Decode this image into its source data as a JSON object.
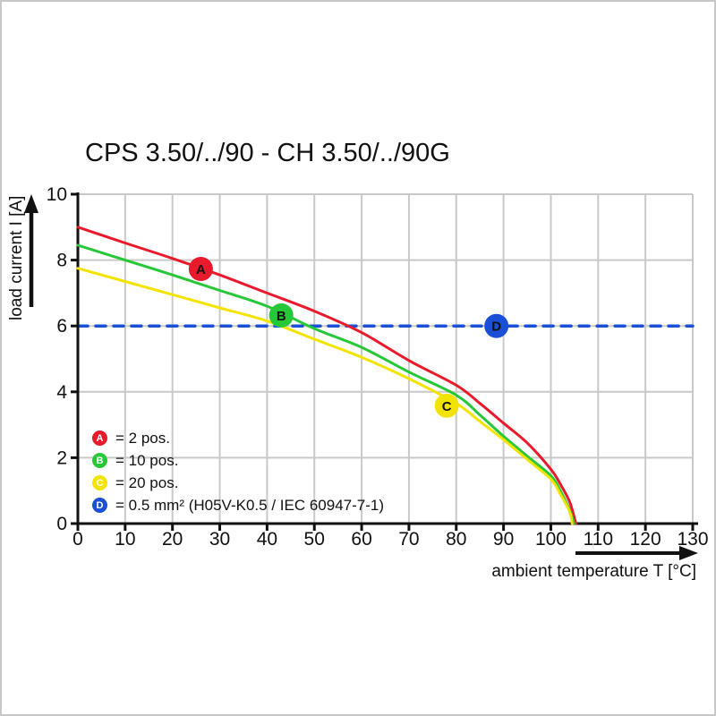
{
  "chart_data": {
    "type": "line",
    "title": "CPS 3.50/../90 - CH 3.50/../90G",
    "xlabel": "ambient temperature T [°C]",
    "ylabel": "load current I [A]",
    "xlim": [
      0,
      130
    ],
    "ylim": [
      0,
      10
    ],
    "xticks": [
      0,
      10,
      20,
      30,
      40,
      50,
      60,
      70,
      80,
      90,
      100,
      110,
      120,
      130
    ],
    "yticks": [
      0,
      2,
      4,
      6,
      8,
      10
    ],
    "grid": true,
    "legend_position": "lower-left",
    "series": [
      {
        "id": "A",
        "name": "2 pos.",
        "color": "#e81a2c",
        "style": "solid",
        "points": [
          [
            0,
            9.0
          ],
          [
            10,
            8.52
          ],
          [
            20,
            8.05
          ],
          [
            30,
            7.55
          ],
          [
            40,
            7.0
          ],
          [
            50,
            6.45
          ],
          [
            60,
            5.8
          ],
          [
            70,
            4.95
          ],
          [
            80,
            4.2
          ],
          [
            85,
            3.65
          ],
          [
            90,
            3.05
          ],
          [
            95,
            2.45
          ],
          [
            100,
            1.65
          ],
          [
            102,
            1.2
          ],
          [
            104,
            0.65
          ],
          [
            105.3,
            0
          ]
        ],
        "marker": {
          "x": 26,
          "y": 7.73,
          "label": "A"
        }
      },
      {
        "id": "B",
        "name": "10 pos.",
        "color": "#26c838",
        "style": "solid",
        "points": [
          [
            0,
            8.45
          ],
          [
            10,
            8.0
          ],
          [
            20,
            7.55
          ],
          [
            30,
            7.08
          ],
          [
            40,
            6.6
          ],
          [
            50,
            5.92
          ],
          [
            60,
            5.35
          ],
          [
            70,
            4.6
          ],
          [
            80,
            3.9
          ],
          [
            85,
            3.3
          ],
          [
            90,
            2.65
          ],
          [
            95,
            2.05
          ],
          [
            100,
            1.45
          ],
          [
            102,
            1.0
          ],
          [
            104,
            0.4
          ],
          [
            104.9,
            0
          ]
        ],
        "marker": {
          "x": 43,
          "y": 6.32,
          "label": "B"
        }
      },
      {
        "id": "C",
        "name": "20 pos.",
        "color": "#f3e400",
        "style": "solid",
        "points": [
          [
            0,
            7.75
          ],
          [
            10,
            7.35
          ],
          [
            20,
            6.95
          ],
          [
            30,
            6.55
          ],
          [
            40,
            6.15
          ],
          [
            50,
            5.6
          ],
          [
            60,
            5.05
          ],
          [
            70,
            4.4
          ],
          [
            80,
            3.65
          ],
          [
            85,
            3.1
          ],
          [
            90,
            2.55
          ],
          [
            95,
            1.95
          ],
          [
            100,
            1.35
          ],
          [
            102,
            0.9
          ],
          [
            104,
            0.35
          ],
          [
            104.5,
            0
          ]
        ],
        "marker": {
          "x": 78,
          "y": 3.58,
          "label": "C"
        }
      },
      {
        "id": "D",
        "name": "0.5 mm² (H05V-K0.5 / IEC 60947-7-1)",
        "color": "#1b50d6",
        "style": "dashed",
        "points": [
          [
            0,
            6
          ],
          [
            130,
            6
          ]
        ],
        "marker": {
          "x": 88.5,
          "y": 6,
          "label": "D"
        }
      }
    ],
    "legend": [
      {
        "letter": "A",
        "color": "#e81a2c",
        "text": "= 2 pos."
      },
      {
        "letter": "B",
        "color": "#26c838",
        "text": "= 10 pos."
      },
      {
        "letter": "C",
        "color": "#f3e400",
        "text": "= 20 pos."
      },
      {
        "letter": "D",
        "color": "#1b50d6",
        "text": "= 0.5 mm² (H05V-K0.5 / IEC 60947-7-1)"
      }
    ]
  },
  "icons": {
    "y_axis_arrow": "up-arrow",
    "x_axis_arrow": "right-arrow"
  },
  "colors": {
    "grid": "#c9c9c9",
    "axis": "#111111",
    "background": "#ffffff",
    "frame": "#c8c8c8",
    "marker_letter": "#ffffff"
  }
}
